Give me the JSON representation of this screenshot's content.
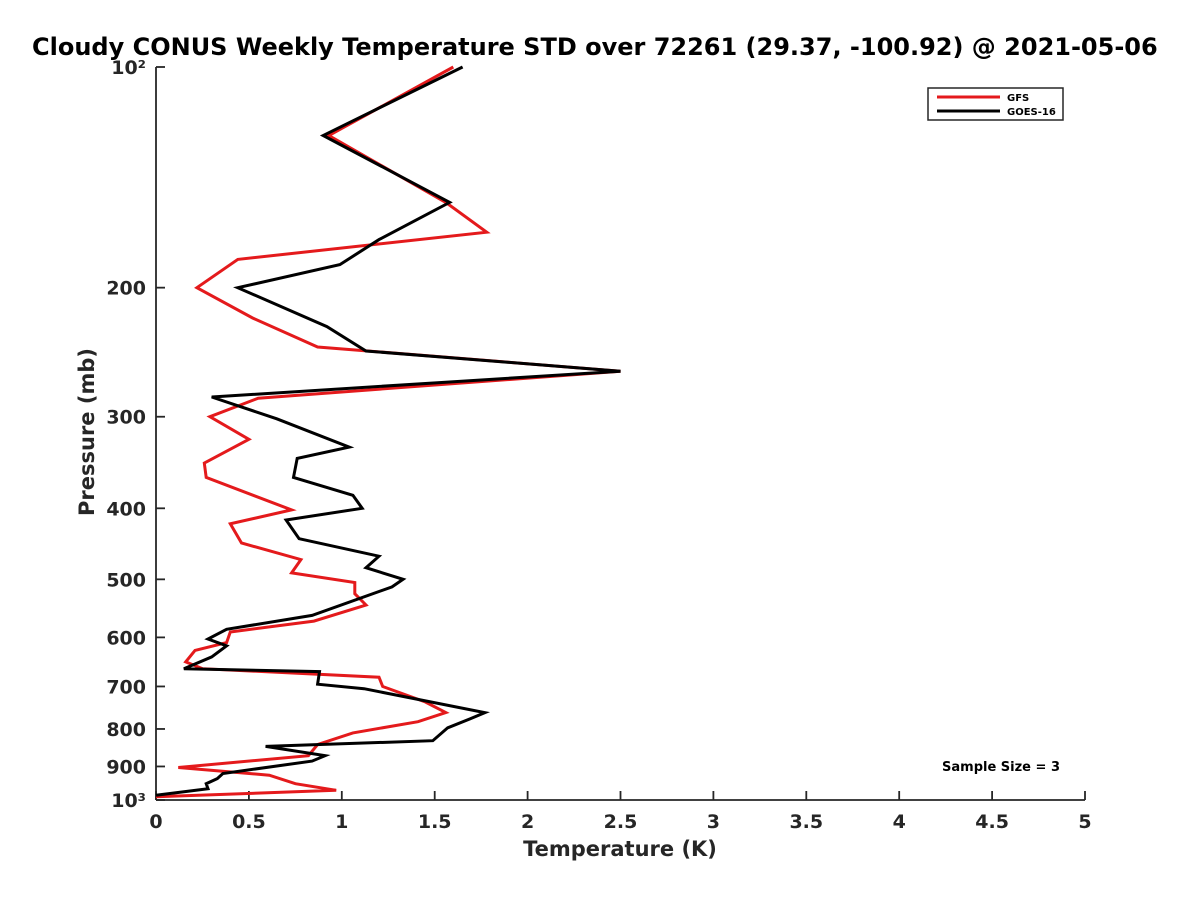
{
  "chart_data": {
    "type": "line",
    "title": "Cloudy CONUS Weekly Temperature STD over 72261 (29.37, -100.92) @ 2021-05-06",
    "xlabel": "Temperature (K)",
    "ylabel": "Pressure (mb)",
    "xlim": [
      0,
      5
    ],
    "ylim": [
      100,
      1000
    ],
    "yscale": "log",
    "y_reversed": true,
    "x_ticks": [
      0,
      0.5,
      1,
      1.5,
      2,
      2.5,
      3,
      3.5,
      4,
      4.5,
      5
    ],
    "x_tick_labels": [
      "0",
      "0.5",
      "1",
      "1.5",
      "2",
      "2.5",
      "3",
      "3.5",
      "4",
      "4.5",
      "5"
    ],
    "y_ticks": [
      100,
      200,
      300,
      400,
      500,
      600,
      700,
      800,
      900,
      1000
    ],
    "y_tick_labels": [
      "10²",
      "200",
      "300",
      "400",
      "500",
      "600",
      "700",
      "800",
      "900",
      "10³"
    ],
    "legend_position": "top-right",
    "annotation": "Sample Size = 3",
    "series": [
      {
        "name": "GFS",
        "color": "#e41a1c",
        "points": [
          [
            1.6,
            100
          ],
          [
            0.93,
            124
          ],
          [
            1.56,
            153
          ],
          [
            1.78,
            168
          ],
          [
            0.44,
            183
          ],
          [
            0.22,
            200
          ],
          [
            0.52,
            220
          ],
          [
            0.87,
            241
          ],
          [
            2.5,
            260
          ],
          [
            0.55,
            283
          ],
          [
            0.29,
            300
          ],
          [
            0.5,
            322
          ],
          [
            0.26,
            347
          ],
          [
            0.27,
            363
          ],
          [
            0.73,
            402
          ],
          [
            0.4,
            420
          ],
          [
            0.46,
            446
          ],
          [
            0.78,
            470
          ],
          [
            0.73,
            490
          ],
          [
            1.07,
            505
          ],
          [
            1.07,
            523
          ],
          [
            1.13,
            542
          ],
          [
            0.85,
            570
          ],
          [
            0.4,
            590
          ],
          [
            0.38,
            610
          ],
          [
            0.21,
            625
          ],
          [
            0.16,
            648
          ],
          [
            0.25,
            662
          ],
          [
            1.2,
            680
          ],
          [
            1.22,
            700
          ],
          [
            1.45,
            735
          ],
          [
            1.56,
            760
          ],
          [
            1.41,
            782
          ],
          [
            1.06,
            810
          ],
          [
            0.87,
            840
          ],
          [
            0.82,
            870
          ],
          [
            0.12,
            903
          ],
          [
            0.61,
            925
          ],
          [
            0.75,
            950
          ],
          [
            0.97,
            970
          ],
          [
            0.0,
            990
          ]
        ]
      },
      {
        "name": "GOES-16",
        "color": "#000000",
        "points": [
          [
            1.65,
            100
          ],
          [
            0.9,
            124
          ],
          [
            1.58,
            153
          ],
          [
            1.2,
            172
          ],
          [
            0.99,
            186
          ],
          [
            0.44,
            200
          ],
          [
            0.92,
            226
          ],
          [
            1.13,
            244
          ],
          [
            2.5,
            260
          ],
          [
            0.3,
            282
          ],
          [
            0.65,
            302
          ],
          [
            1.04,
            330
          ],
          [
            0.76,
            342
          ],
          [
            0.74,
            363
          ],
          [
            1.06,
            384
          ],
          [
            1.11,
            400
          ],
          [
            0.7,
            415
          ],
          [
            0.77,
            440
          ],
          [
            1.2,
            465
          ],
          [
            1.13,
            482
          ],
          [
            1.33,
            500
          ],
          [
            1.27,
            512
          ],
          [
            0.84,
            560
          ],
          [
            0.38,
            585
          ],
          [
            0.28,
            603
          ],
          [
            0.38,
            616
          ],
          [
            0.3,
            638
          ],
          [
            0.15,
            662
          ],
          [
            0.88,
            668
          ],
          [
            0.87,
            695
          ],
          [
            1.12,
            705
          ],
          [
            1.77,
            760
          ],
          [
            1.69,
            775
          ],
          [
            1.57,
            797
          ],
          [
            1.49,
            830
          ],
          [
            0.59,
            845
          ],
          [
            0.91,
            870
          ],
          [
            0.84,
            885
          ],
          [
            0.36,
            920
          ],
          [
            0.33,
            935
          ],
          [
            0.27,
            950
          ],
          [
            0.28,
            965
          ],
          [
            0.0,
            985
          ]
        ]
      }
    ]
  }
}
